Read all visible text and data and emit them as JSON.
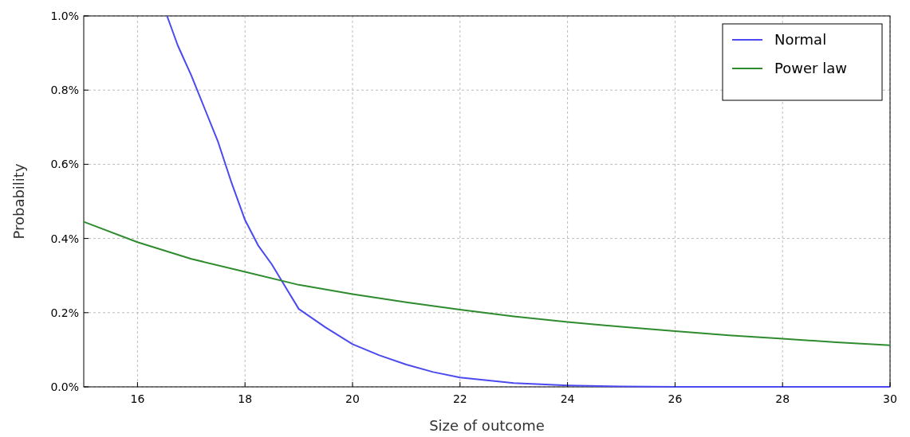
{
  "chart_data": {
    "type": "line",
    "xlabel": "Size of outcome",
    "ylabel": "Probability",
    "xlim": [
      15,
      30
    ],
    "xticks": [
      16,
      18,
      20,
      22,
      24,
      26,
      28,
      30
    ],
    "ylim": [
      0,
      1
    ],
    "yticks": [
      {
        "value": 0,
        "label": "0.0%"
      },
      {
        "value": 0.2,
        "label": "0.2%"
      },
      {
        "value": 0.4,
        "label": "0.4%"
      },
      {
        "value": 0.6,
        "label": "0.6%"
      },
      {
        "value": 0.8,
        "label": "0.8%"
      },
      {
        "value": 1,
        "label": "1.0%"
      }
    ],
    "grid": true,
    "legend": "top right",
    "line_style": "solid",
    "marker": "none",
    "series": [
      {
        "name": "Normal",
        "color": "#4a4af0",
        "x": [
          16.55,
          16.75,
          17,
          17.25,
          17.5,
          17.75,
          18,
          18.25,
          18.5,
          18.75,
          19,
          19.5,
          20,
          20.5,
          21,
          21.5,
          22,
          23,
          24,
          25,
          26,
          27,
          28,
          29,
          30
        ],
        "values": [
          1,
          0.92,
          0.84,
          0.75,
          0.66,
          0.55,
          0.45,
          0.38,
          0.33,
          0.27,
          0.21,
          0.16,
          0.115,
          0.085,
          0.06,
          0.04,
          0.025,
          0.01,
          0.004,
          0.001,
          0,
          0,
          0,
          0,
          0
        ]
      },
      {
        "name": "Power law",
        "color": "#2e8b2e",
        "x": [
          15,
          16,
          17,
          18,
          19,
          20,
          21,
          22,
          23,
          24,
          25,
          26,
          27,
          28,
          29,
          30
        ],
        "values": [
          0.445,
          0.39,
          0.345,
          0.31,
          0.275,
          0.25,
          0.228,
          0.208,
          0.19,
          0.175,
          0.162,
          0.15,
          0.139,
          0.13,
          0.12,
          0.112
        ]
      }
    ]
  }
}
